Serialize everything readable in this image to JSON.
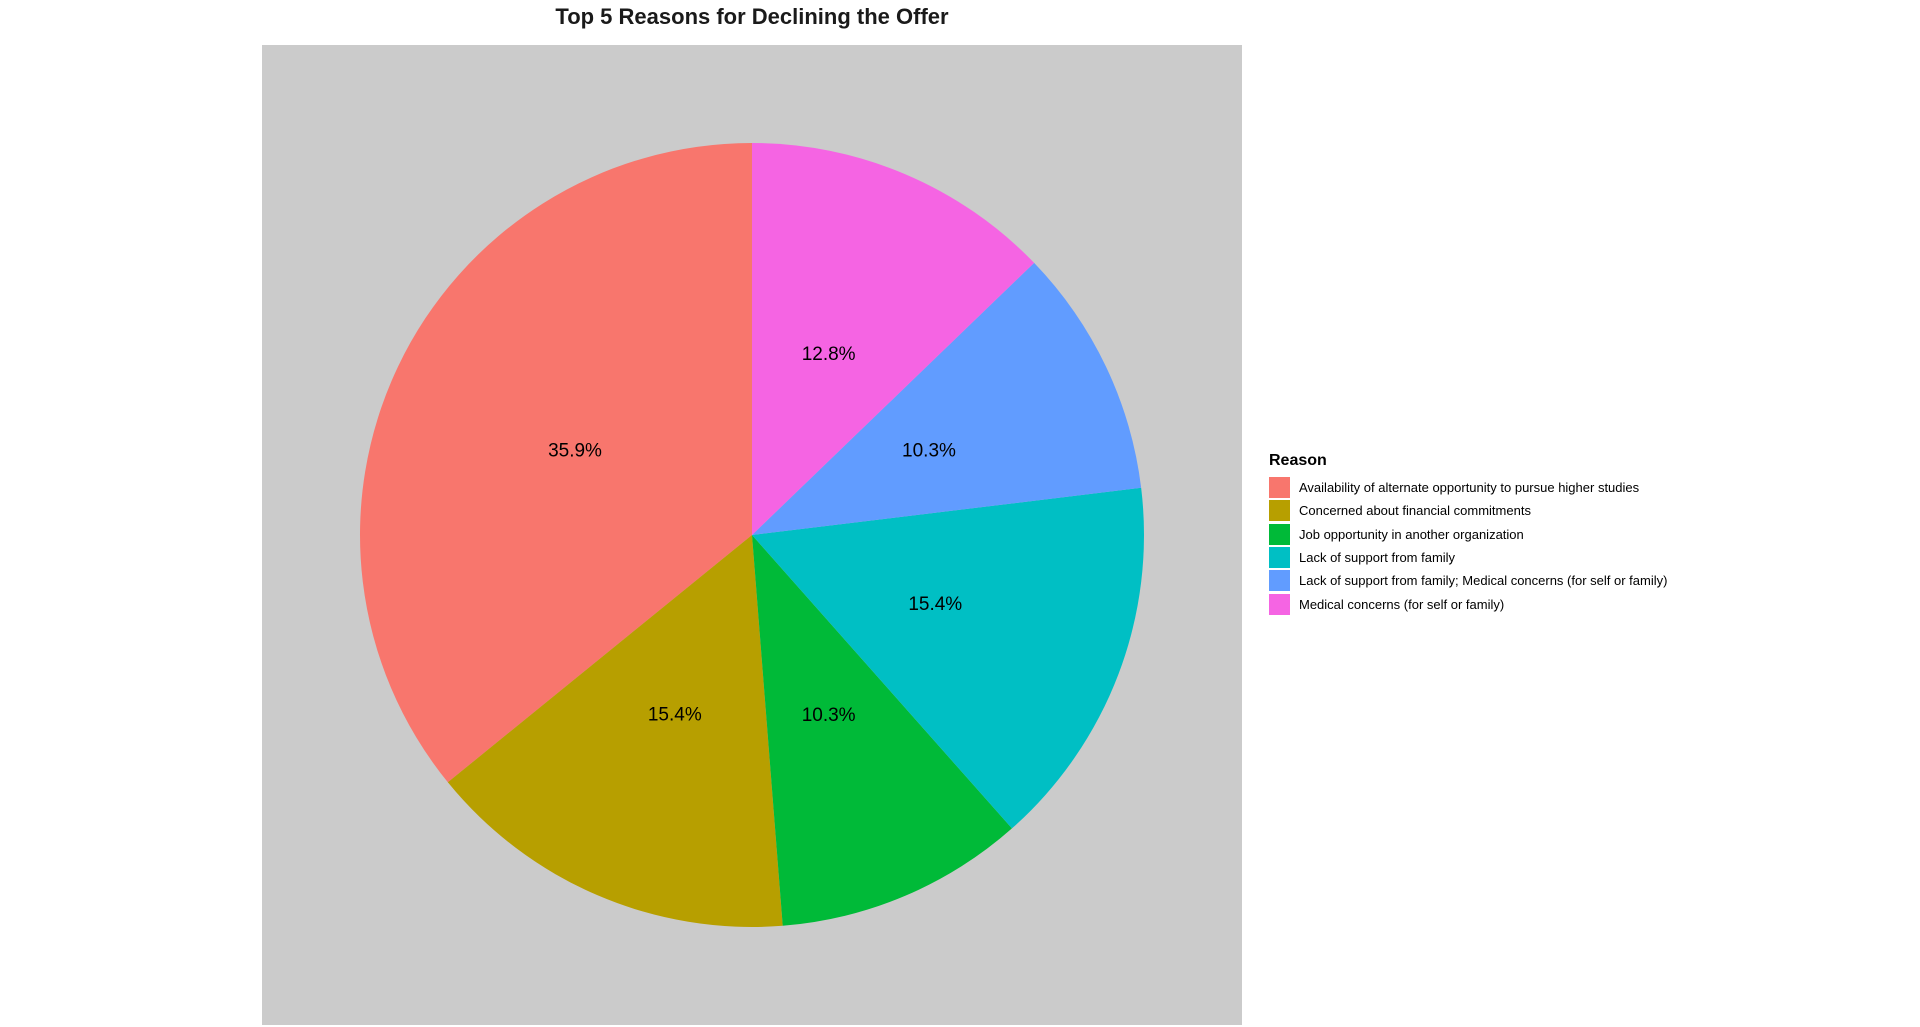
{
  "chart_data": {
    "type": "pie",
    "title": "Top 5 Reasons for Declining the Offer",
    "legend_title": "Reason",
    "legend_position": "right",
    "direction": "counterclockwise",
    "start": "top",
    "slices": [
      {
        "label": "Availability of alternate opportunity to pursue higher studies",
        "value": 35.9,
        "display": "35.9%",
        "color": "#F8766D"
      },
      {
        "label": "Concerned about financial commitments",
        "value": 15.4,
        "display": "15.4%",
        "color": "#B79F00"
      },
      {
        "label": "Job opportunity in another organization",
        "value": 10.3,
        "display": "10.3%",
        "color": "#00BA38"
      },
      {
        "label": "Lack of support from family",
        "value": 15.4,
        "display": "15.4%",
        "color": "#00BFC4"
      },
      {
        "label": "Lack of support from family; Medical concerns (for self or family)",
        "value": 10.3,
        "display": "10.3%",
        "color": "#619CFF"
      },
      {
        "label": "Medical concerns (for self or family)",
        "value": 12.8,
        "display": "12.8%",
        "color": "#F564E3"
      }
    ]
  }
}
